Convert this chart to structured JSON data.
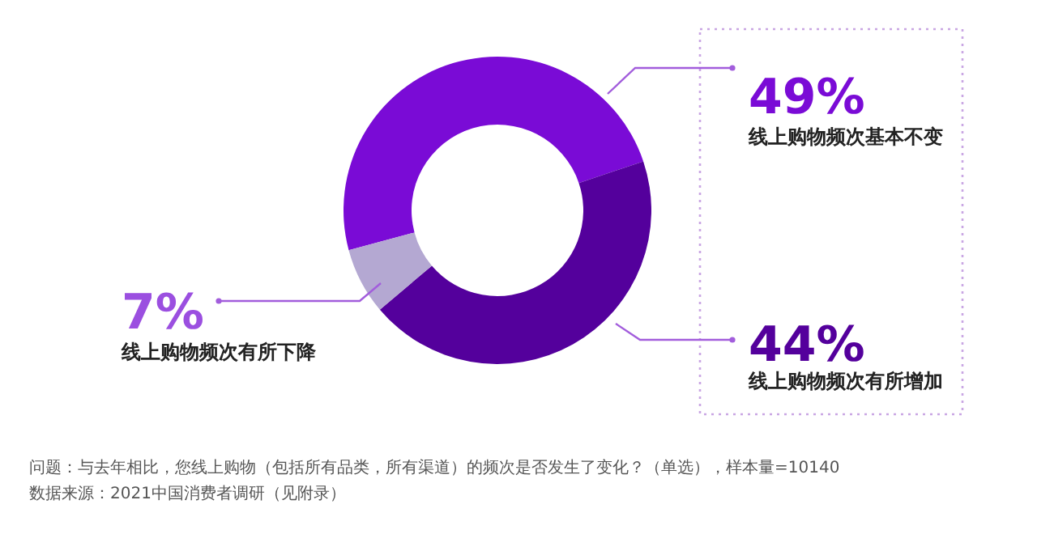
{
  "chart_data": {
    "type": "donut",
    "categories": [
      "线上购物频次基本不变",
      "线上购物频次有所增加",
      "线上购物频次有所下降"
    ],
    "values": [
      49,
      44,
      7
    ],
    "colors": [
      "#7a0bd6",
      "#54009c",
      "#b4a8d2"
    ],
    "value_labels": [
      "49%",
      "44%",
      "7%"
    ],
    "annotations": [
      "问题：与去年相比，您线上购物（包括所有品类，所有渠道）的频次是否发生了变化？（单选），样本量=10140",
      "数据来源：2021中国消费者调研（见附录）"
    ]
  }
}
